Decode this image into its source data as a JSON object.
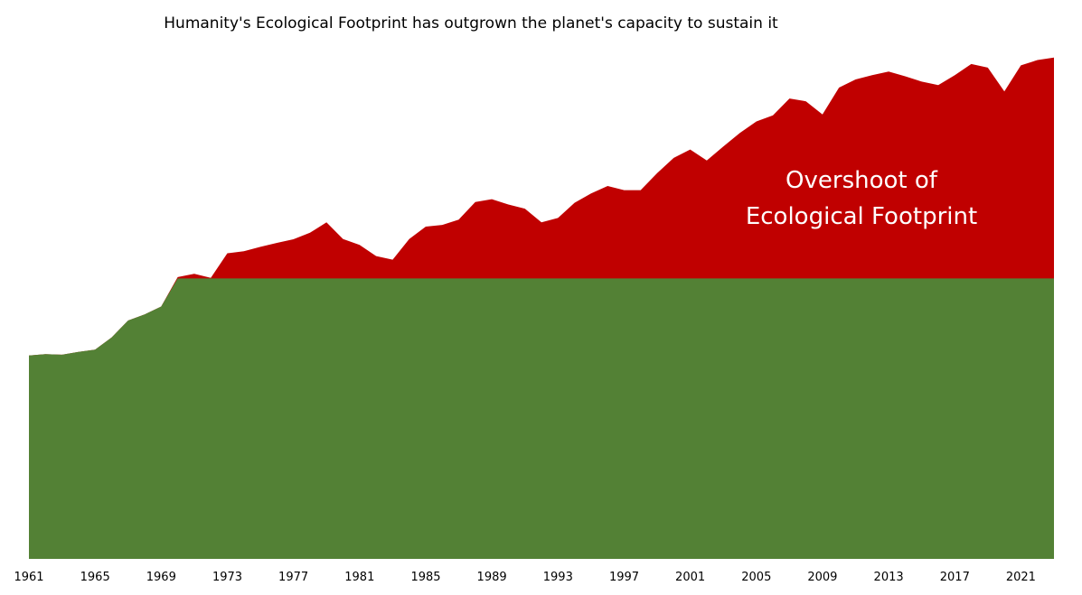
{
  "chart_data": {
    "type": "area",
    "title": "Humanity's Ecological Footprint has outgrown the planet's capacity to sustain it",
    "xlabel": "",
    "ylabel": "",
    "x": [
      1961,
      1962,
      1963,
      1964,
      1965,
      1966,
      1967,
      1968,
      1969,
      1970,
      1971,
      1972,
      1973,
      1974,
      1975,
      1976,
      1977,
      1978,
      1979,
      1980,
      1981,
      1982,
      1983,
      1984,
      1985,
      1986,
      1987,
      1988,
      1989,
      1990,
      1991,
      1992,
      1993,
      1994,
      1995,
      1996,
      1997,
      1998,
      1999,
      2000,
      2001,
      2002,
      2003,
      2004,
      2005,
      2006,
      2007,
      2008,
      2009,
      2010,
      2011,
      2012,
      2013,
      2014,
      2015,
      2016,
      2017,
      2018,
      2019,
      2020,
      2021,
      2022,
      2023
    ],
    "xlim": [
      1961,
      2023
    ],
    "x_tick_labels": [
      "1961",
      "1965",
      "1969",
      "1973",
      "1977",
      "1981",
      "1985",
      "1989",
      "1993",
      "1997",
      "2001",
      "2005",
      "2009",
      "2013",
      "2017",
      "2021"
    ],
    "ylim": [
      0,
      1.8
    ],
    "y_tick_labels": [],
    "grid": false,
    "legend": "none",
    "series": [
      {
        "color": "#538135",
        "values": [
          0.725,
          0.73,
          0.728,
          0.738,
          0.746,
          0.79,
          0.85,
          0.872,
          0.9,
          1.0,
          1.0,
          1.0,
          1.0,
          1.0,
          1.0,
          1.0,
          1.0,
          1.0,
          1.0,
          1.0,
          1.0,
          1.0,
          1.0,
          1.0,
          1.0,
          1.0,
          1.0,
          1.0,
          1.0,
          1.0,
          1.0,
          1.0,
          1.0,
          1.0,
          1.0,
          1.0,
          1.0,
          1.0,
          1.0,
          1.0,
          1.0,
          1.0,
          1.0,
          1.0,
          1.0,
          1.0,
          1.0,
          1.0,
          1.0,
          1.0,
          1.0,
          1.0,
          1.0,
          1.0,
          1.0,
          1.0,
          1.0,
          1.0,
          1.0,
          1.0,
          1.0,
          1.0,
          1.0
        ]
      },
      {
        "color": "#c00000",
        "values": [
          0.725,
          0.73,
          0.728,
          0.738,
          0.746,
          0.79,
          0.85,
          0.872,
          0.9,
          1.005,
          1.017,
          1.002,
          1.09,
          1.097,
          1.113,
          1.127,
          1.14,
          1.163,
          1.2,
          1.141,
          1.12,
          1.08,
          1.067,
          1.141,
          1.185,
          1.191,
          1.21,
          1.273,
          1.283,
          1.264,
          1.249,
          1.2,
          1.216,
          1.27,
          1.303,
          1.33,
          1.315,
          1.315,
          1.376,
          1.43,
          1.46,
          1.421,
          1.471,
          1.519,
          1.56,
          1.582,
          1.642,
          1.632,
          1.585,
          1.681,
          1.71,
          1.725,
          1.738,
          1.721,
          1.702,
          1.69,
          1.725,
          1.765,
          1.752,
          1.667,
          1.76,
          1.779,
          1.788
        ]
      }
    ],
    "annotations": [
      "Overshoot of",
      "Ecological Footprint"
    ]
  }
}
